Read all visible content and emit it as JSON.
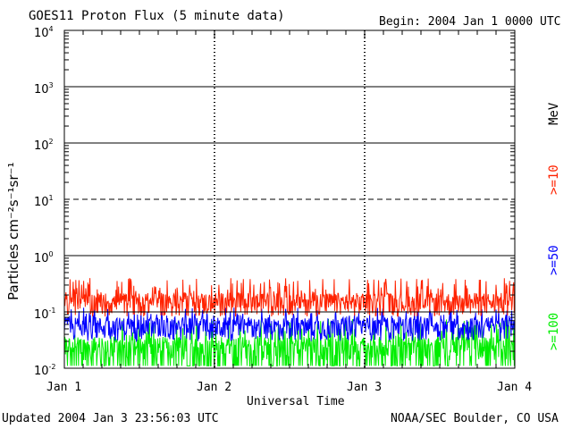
{
  "chart_data": {
    "type": "line",
    "title": "GOES11 Proton Flux (5 minute data)",
    "begin_label": "Begin: 2004 Jan 1 0000 UTC",
    "xlabel": "Universal Time",
    "ylabel": "Particles cm⁻²s⁻¹sr⁻¹",
    "y_scale": "log",
    "ylim": [
      0.01,
      10000
    ],
    "y_ticks": [
      {
        "base": "10",
        "exp": "4"
      },
      {
        "base": "10",
        "exp": "3"
      },
      {
        "base": "10",
        "exp": "2"
      },
      {
        "base": "10",
        "exp": "1"
      },
      {
        "base": "10",
        "exp": "0"
      },
      {
        "base": "10",
        "exp": "-1"
      },
      {
        "base": "10",
        "exp": "-2"
      }
    ],
    "x_ticks": [
      "Jan 1",
      "Jan 2",
      "Jan 3",
      "Jan 4"
    ],
    "xlim_days": [
      0,
      3
    ],
    "solid_gridlines": [
      1000,
      100,
      1,
      0.1
    ],
    "dashed_gridlines": [
      10
    ],
    "units_label": "MeV",
    "series": [
      {
        "name": ">=10",
        "color": "#ff2200",
        "baseline": 0.15,
        "spike_max": 0.4
      },
      {
        "name": ">=50",
        "color": "#0000ff",
        "baseline": 0.055,
        "spike_max": 0.12
      },
      {
        "name": ">=100",
        "color": "#00ee00",
        "baseline": 0.025,
        "spike_max": 0.075,
        "floor": 0.011
      }
    ]
  },
  "footer": {
    "updated": "Updated 2004 Jan  3 23:56:03 UTC",
    "credit": "NOAA/SEC Boulder, CO USA"
  }
}
